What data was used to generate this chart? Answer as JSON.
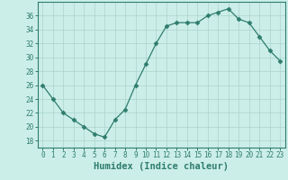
{
  "x": [
    0,
    1,
    2,
    3,
    4,
    5,
    6,
    7,
    8,
    9,
    10,
    11,
    12,
    13,
    14,
    15,
    16,
    17,
    18,
    19,
    20,
    21,
    22,
    23
  ],
  "y": [
    26,
    24,
    22,
    21,
    20,
    19,
    18.5,
    21,
    22.5,
    26,
    29,
    32,
    34.5,
    35,
    35,
    35,
    36,
    36.5,
    37,
    35.5,
    35,
    33,
    31,
    29.5
  ],
  "line_color": "#2e7d6e",
  "marker": "D",
  "marker_size": 2.5,
  "bg_color": "#cceee8",
  "grid_color": "#aad4cc",
  "xlabel": "Humidex (Indice chaleur)",
  "xlabel_fontsize": 7.5,
  "xlim": [
    -0.5,
    23.5
  ],
  "ylim": [
    17,
    38
  ],
  "yticks": [
    18,
    20,
    22,
    24,
    26,
    28,
    30,
    32,
    34,
    36
  ],
  "xticks": [
    0,
    1,
    2,
    3,
    4,
    5,
    6,
    7,
    8,
    9,
    10,
    11,
    12,
    13,
    14,
    15,
    16,
    17,
    18,
    19,
    20,
    21,
    22,
    23
  ],
  "tick_label_fontsize": 5.5,
  "tick_color": "#2e7d6e",
  "spine_color": "#2e7d6e"
}
